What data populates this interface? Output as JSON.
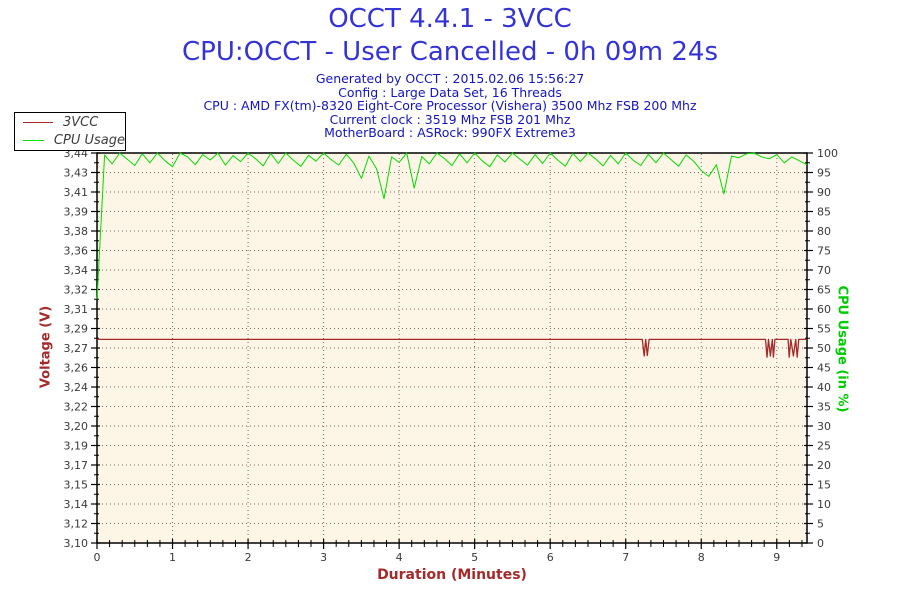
{
  "header": {
    "title": "OCCT 4.4.1 - 3VCC",
    "subtitle": "CPU:OCCT - User Cancelled - 0h 09m 24s",
    "info_lines": [
      "Generated by OCCT : 2015.02.06 15:56:27",
      "Config : Large Data Set, 16 Threads",
      "CPU : AMD FX(tm)-8320 Eight-Core Processor (Vishera) 3500 Mhz FSB 200 Mhz",
      "Current clock : 3519 Mhz FSB 201 Mhz",
      "MotherBoard : ASRock: 990FX Extreme3"
    ]
  },
  "legend": {
    "items": [
      {
        "label": "3VCC",
        "color": "#A52A2A"
      },
      {
        "label": "CPU Usage",
        "color": "#00DD00"
      }
    ]
  },
  "colors": {
    "title_blue": "#3333D6",
    "info_blue": "#1515BB",
    "plot_background": "#FDF5E6",
    "grid": "#6b6b6b",
    "axis": "#000000",
    "tick_text": "#3a3a3a"
  },
  "chart_data": {
    "type": "line",
    "plot_bg": "#FDF5E6",
    "grid": "dotted",
    "x_axis": {
      "label": "Duration (Minutes)",
      "min": 0,
      "max": 9.4,
      "major_tick_labels": [
        "0",
        "1",
        "2",
        "3",
        "4",
        "5",
        "6",
        "7",
        "8",
        "9"
      ],
      "minor_per_major": 5
    },
    "y_left": {
      "label": "Voltage (V)",
      "min": 3.1,
      "max": 3.44,
      "color": "#A52A2A",
      "tick_labels": [
        "3,44",
        "3,43",
        "3,41",
        "3,39",
        "3,38",
        "3,36",
        "3,34",
        "3,32",
        "3,31",
        "3,29",
        "3,27",
        "3,26",
        "3,24",
        "3,22",
        "3,20",
        "3,19",
        "3,17",
        "3,15",
        "3,14",
        "3,12",
        "3,10"
      ]
    },
    "y_right": {
      "label": "CPU Usage (in %)",
      "min": 0,
      "max": 100,
      "color": "#00CC00",
      "tick_labels": [
        "100",
        "95",
        "90",
        "85",
        "80",
        "75",
        "70",
        "65",
        "60",
        "55",
        "50",
        "45",
        "40",
        "35",
        "30",
        "25",
        "20",
        "15",
        "10",
        "5",
        "0"
      ]
    },
    "series": [
      {
        "name": "3VCC",
        "axis": "left",
        "color": "#A52A2A",
        "width": 1.3,
        "points": [
          [
            0,
            3.2775
          ],
          [
            7.22,
            3.2775
          ],
          [
            7.245,
            3.263
          ],
          [
            7.265,
            3.2775
          ],
          [
            7.285,
            3.2635
          ],
          [
            7.31,
            3.2775
          ],
          [
            8.85,
            3.2775
          ],
          [
            8.87,
            3.262
          ],
          [
            8.89,
            3.2775
          ],
          [
            8.915,
            3.263
          ],
          [
            8.94,
            3.2775
          ],
          [
            8.955,
            3.262
          ],
          [
            8.975,
            3.2775
          ],
          [
            9.15,
            3.2775
          ],
          [
            9.165,
            3.262
          ],
          [
            9.185,
            3.2775
          ],
          [
            9.22,
            3.263
          ],
          [
            9.25,
            3.2775
          ],
          [
            9.27,
            3.262
          ],
          [
            9.29,
            3.2775
          ],
          [
            9.4,
            3.2775
          ]
        ]
      },
      {
        "name": "CPU Usage",
        "axis": "right",
        "color": "#00DD00",
        "width": 1,
        "x_start": 0,
        "x_step": 0.1,
        "values": [
          62.5,
          99.5,
          97.2,
          100,
          98.4,
          96.8,
          99.8,
          97.5,
          100,
          98.0,
          96.5,
          100,
          99.0,
          97.0,
          99.6,
          98.2,
          100,
          96.9,
          99.3,
          97.8,
          100,
          98.5,
          96.7,
          99.9,
          97.3,
          100,
          98.1,
          96.6,
          99.4,
          97.9,
          100,
          98.3,
          96.9,
          99.7,
          97.4,
          93.5,
          99.2,
          96.0,
          88.3,
          99.0,
          97.6,
          100,
          91.0,
          99.1,
          97.2,
          100,
          98.6,
          96.8,
          99.8,
          97.5,
          100,
          98.0,
          96.5,
          99.5,
          97.7,
          100,
          98.4,
          96.9,
          99.6,
          97.3,
          100,
          98.2,
          96.6,
          99.9,
          97.8,
          100,
          98.5,
          96.7,
          99.4,
          97.2,
          100,
          98.1,
          96.8,
          99.7,
          97.5,
          100,
          98.3,
          96.6,
          99.5,
          97.9,
          95.5,
          94.0,
          97.0,
          89.5,
          99.2,
          98.8,
          99.8,
          100,
          99.0,
          98.5,
          99.6,
          97.5,
          99.0,
          98.0,
          97.0
        ]
      }
    ]
  }
}
